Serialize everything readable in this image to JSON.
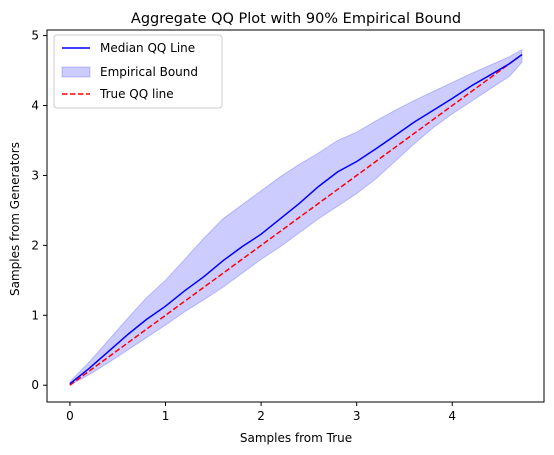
{
  "chart_data": {
    "type": "line",
    "title": "Aggregate QQ Plot with 90% Empirical Bound",
    "xlabel": "Samples from True",
    "ylabel": "Samples from Generators",
    "xlim": [
      -0.24,
      4.96
    ],
    "ylim": [
      -0.24,
      5.08
    ],
    "xticks": [
      0,
      1,
      2,
      3,
      4
    ],
    "yticks": [
      0,
      1,
      2,
      3,
      4,
      5
    ],
    "grid": false,
    "legend_position": "top-left",
    "series": [
      {
        "name": "Median QQ Line",
        "style": "line",
        "color": "#0000ff",
        "x": [
          0.0,
          0.2,
          0.4,
          0.6,
          0.8,
          1.0,
          1.2,
          1.4,
          1.6,
          1.8,
          2.0,
          2.2,
          2.4,
          2.6,
          2.8,
          3.0,
          3.2,
          3.4,
          3.6,
          3.8,
          4.0,
          4.2,
          4.4,
          4.6,
          4.73
        ],
        "y": [
          0.02,
          0.24,
          0.48,
          0.72,
          0.94,
          1.13,
          1.35,
          1.55,
          1.78,
          1.98,
          2.16,
          2.38,
          2.6,
          2.84,
          3.05,
          3.2,
          3.38,
          3.57,
          3.76,
          3.93,
          4.1,
          4.28,
          4.44,
          4.6,
          4.73
        ]
      },
      {
        "name": "Empirical Bound",
        "style": "band",
        "color": "#0000ff",
        "x": [
          0.0,
          0.2,
          0.4,
          0.6,
          0.8,
          1.0,
          1.2,
          1.4,
          1.6,
          1.8,
          2.0,
          2.2,
          2.4,
          2.6,
          2.8,
          3.0,
          3.2,
          3.4,
          3.6,
          3.8,
          4.0,
          4.2,
          4.4,
          4.6,
          4.73
        ],
        "lower": [
          0.0,
          0.15,
          0.32,
          0.5,
          0.68,
          0.86,
          1.05,
          1.22,
          1.4,
          1.6,
          1.8,
          1.98,
          2.18,
          2.38,
          2.56,
          2.74,
          2.95,
          3.2,
          3.45,
          3.68,
          3.88,
          4.06,
          4.24,
          4.42,
          4.62
        ],
        "upper": [
          0.05,
          0.33,
          0.64,
          0.95,
          1.25,
          1.5,
          1.8,
          2.1,
          2.38,
          2.58,
          2.78,
          2.98,
          3.16,
          3.32,
          3.5,
          3.62,
          3.78,
          3.93,
          4.07,
          4.2,
          4.33,
          4.46,
          4.58,
          4.7,
          4.8
        ]
      },
      {
        "name": "True QQ line",
        "style": "dashed",
        "color": "#ff0000",
        "x": [
          0.0,
          4.7
        ],
        "y": [
          0.0,
          4.7
        ]
      }
    ]
  }
}
